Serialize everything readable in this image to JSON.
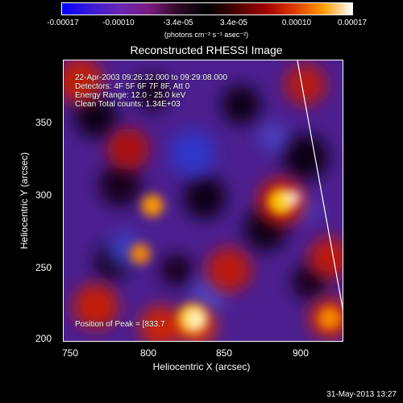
{
  "colorbar": {
    "ticks": [
      "-0.00017",
      "-0.00010",
      "-3.4e-05",
      "3.4e-05",
      "0.00010",
      "0.00017"
    ],
    "unit": "(photons cm⁻² s⁻¹ asec⁻²)"
  },
  "title": "Reconstructed RHESSI Image",
  "info": {
    "line1": "22-Apr-2003 09:26:32.000 to 09:29:08.000",
    "line2": "Detectors: 4F 5F 6F 7F 8F, Att 0",
    "line3": "Energy Range: 12.0 - 25.0 keV",
    "line4": "Clean     Total counts: 1.34E+03",
    "peak": "Position of Peak = [833.7"
  },
  "axes": {
    "xlabel": "Heliocentric X (arcsec)",
    "ylabel": "Heliocentric Y (arcsec)",
    "xticks": [
      "750",
      "800",
      "850",
      "900"
    ],
    "yticks": [
      "350",
      "300",
      "250",
      "200"
    ]
  },
  "footer": {
    "timestamp": "31-May-2013 13:27"
  }
}
